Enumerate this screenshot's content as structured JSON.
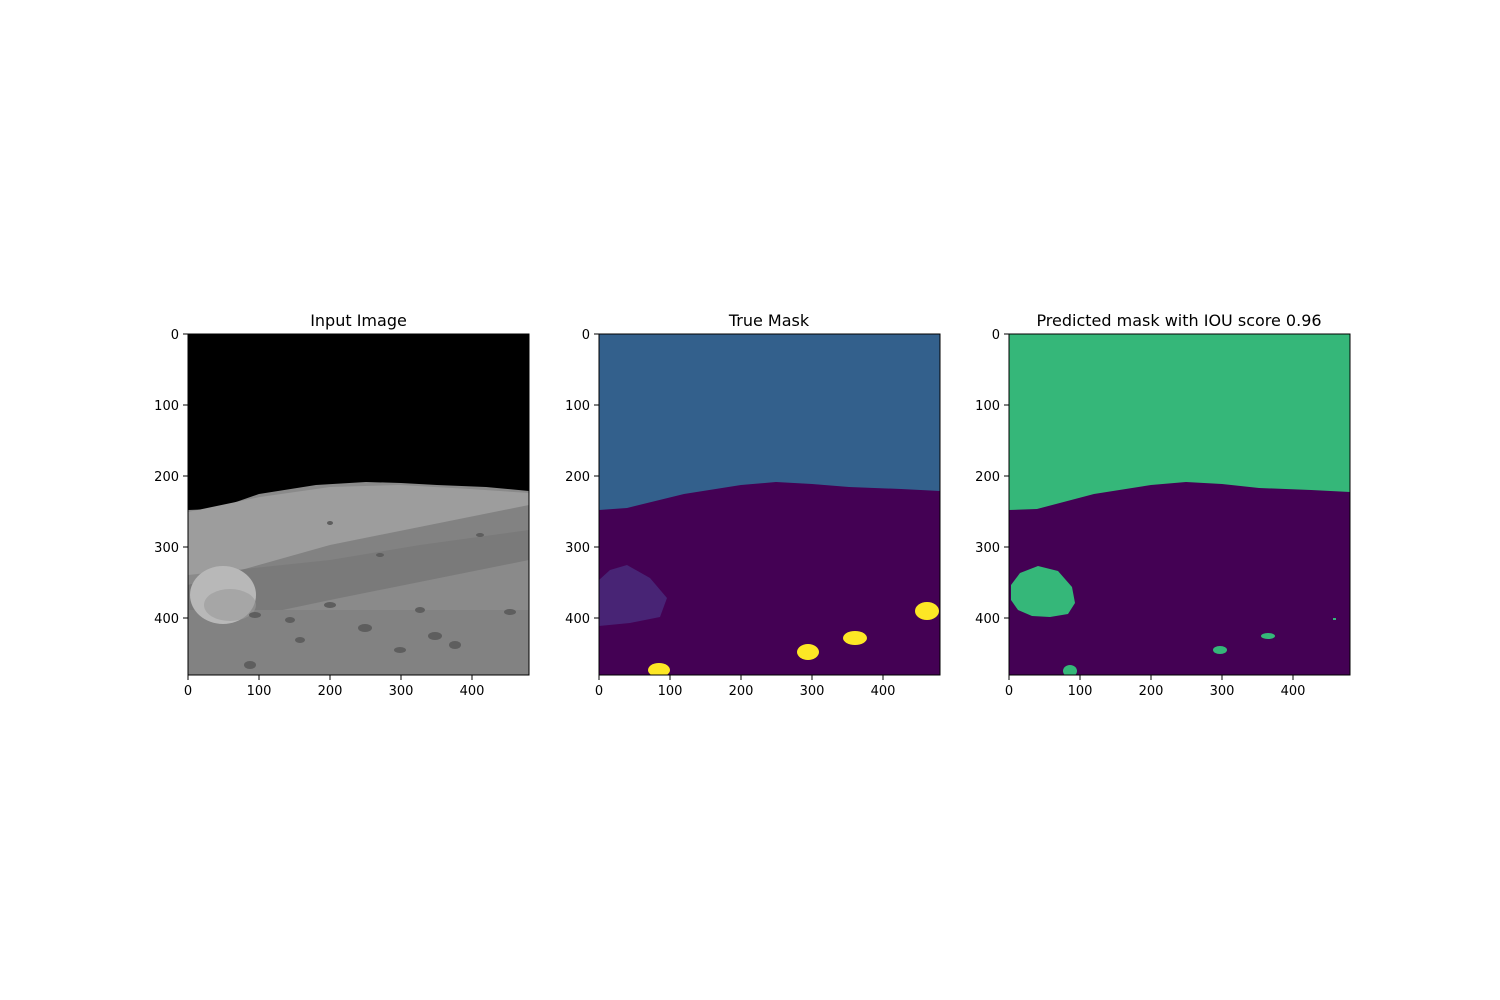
{
  "figure": {
    "panels": [
      {
        "title": "Input Image"
      },
      {
        "title": "True Mask"
      },
      {
        "title": "Predicted mask with IOU score 0.96"
      }
    ]
  },
  "chart_data": [
    {
      "type": "image",
      "title": "Input Image",
      "content": "grayscale lunar surface: black sky above horizon, rocky ground, large boulder at left",
      "xlim": [
        0,
        480
      ],
      "ylim": [
        480,
        0
      ],
      "xticks": [
        0,
        100,
        200,
        300,
        400
      ],
      "yticks": [
        0,
        100,
        200,
        300,
        400
      ],
      "colors": {
        "sky": "#000000",
        "ground": "#8c8c8c",
        "boulder": "#b4b4b4"
      }
    },
    {
      "type": "heatmap",
      "title": "True Mask",
      "colormap": "viridis",
      "xlim": [
        0,
        480
      ],
      "ylim": [
        480,
        0
      ],
      "xticks": [
        0,
        100,
        200,
        300,
        400
      ],
      "yticks": [
        0,
        100,
        200,
        300,
        400
      ],
      "horizon_y": [
        [
          0,
          248
        ],
        [
          40,
          246
        ],
        [
          100,
          225
        ],
        [
          180,
          212
        ],
        [
          250,
          208
        ],
        [
          300,
          209
        ],
        [
          350,
          213
        ],
        [
          420,
          216
        ],
        [
          480,
          221
        ]
      ],
      "regions": [
        {
          "name": "ground",
          "color": "#440154"
        },
        {
          "name": "sky",
          "color": "#33608c"
        },
        {
          "name": "large rock",
          "color": "#482475",
          "center": [
            50,
            367
          ]
        },
        {
          "name": "small rocks",
          "color": "#fde725",
          "centers": [
            [
              85,
              470
            ],
            [
              295,
              444
            ],
            [
              360,
              426
            ],
            [
              462,
              389
            ]
          ]
        }
      ]
    },
    {
      "type": "heatmap",
      "title": "Predicted mask with IOU score 0.96",
      "iou_score": 0.96,
      "colormap": "viridis",
      "xlim": [
        0,
        480
      ],
      "ylim": [
        480,
        0
      ],
      "xticks": [
        0,
        100,
        200,
        300,
        400
      ],
      "yticks": [
        0,
        100,
        200,
        300,
        400
      ],
      "horizon_y": [
        [
          0,
          248
        ],
        [
          40,
          246
        ],
        [
          100,
          225
        ],
        [
          180,
          212
        ],
        [
          250,
          208
        ],
        [
          300,
          209
        ],
        [
          350,
          213
        ],
        [
          420,
          216
        ],
        [
          480,
          221
        ]
      ],
      "regions": [
        {
          "name": "ground",
          "color": "#440154"
        },
        {
          "name": "sky",
          "color": "#35b779"
        },
        {
          "name": "predicted rocks",
          "color": "#35b779",
          "centers": [
            [
              45,
              368
            ],
            [
              85,
              470
            ],
            [
              298,
              443
            ],
            [
              365,
              423
            ],
            [
              458,
              403
            ]
          ]
        }
      ]
    }
  ]
}
